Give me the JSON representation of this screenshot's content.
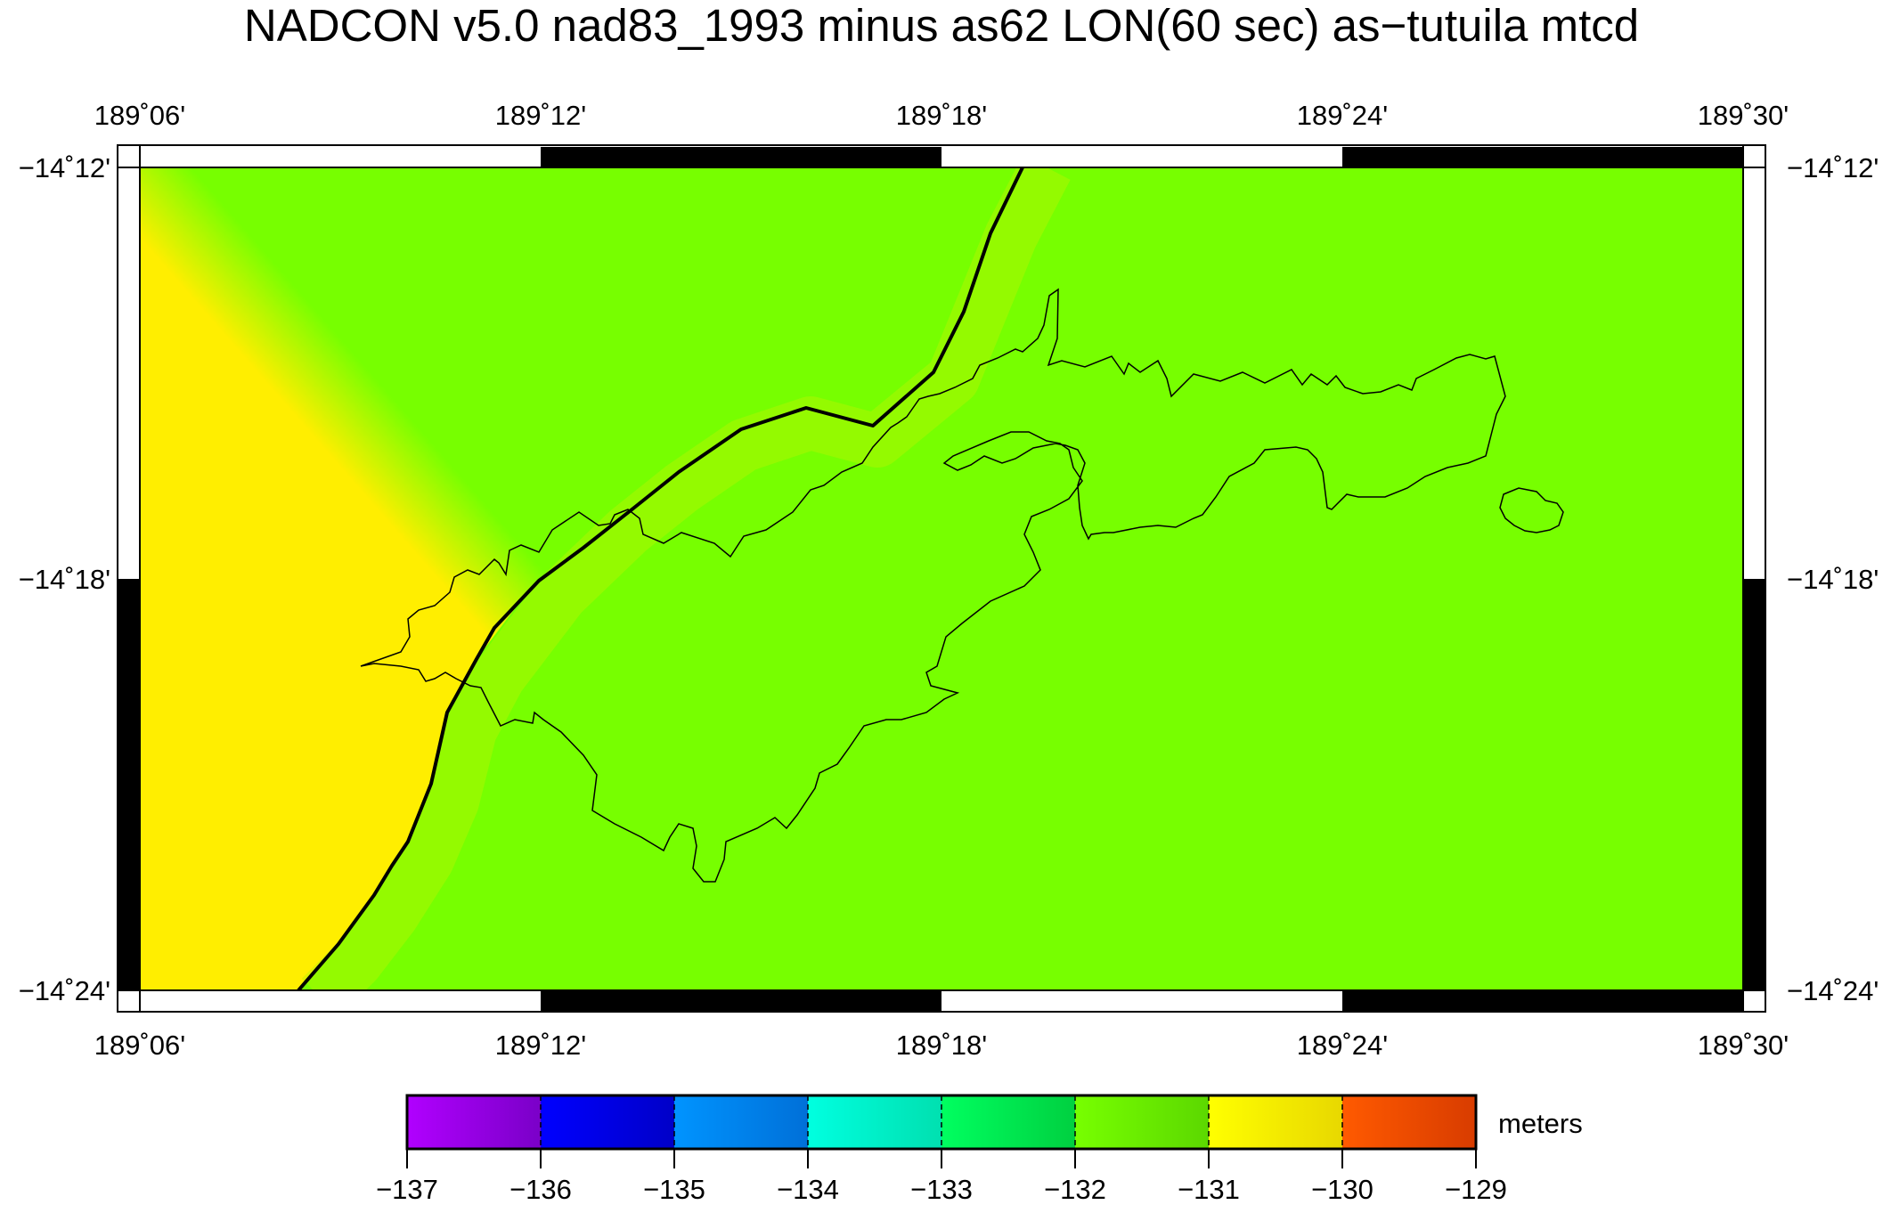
{
  "title": "NADCON v5.0 nad83_1993 minus as62 LON(60 sec) as−tutuila mtcd",
  "axes": {
    "top_ticks": [
      "189˚06'",
      "189˚12'",
      "189˚18'",
      "189˚24'",
      "189˚30'"
    ],
    "bottom_ticks": [
      "189˚06'",
      "189˚12'",
      "189˚18'",
      "189˚24'",
      "189˚30'"
    ],
    "left_ticks": [
      "−14˚12'",
      "−14˚18'",
      "−14˚24'"
    ],
    "right_ticks": [
      "−14˚12'",
      "−14˚18'",
      "−14˚24'"
    ]
  },
  "map": {
    "lon_range": [
      189.1,
      189.5
    ],
    "lat_range": [
      -14.4,
      -14.2
    ],
    "field_colors": {
      "west_zone": "#ffee00",
      "east_zone": "#77ff00"
    }
  },
  "colorbar": {
    "unit": "meters",
    "labels": [
      "−137",
      "−136",
      "−135",
      "−134",
      "−133",
      "−132",
      "−131",
      "−130",
      "−129"
    ],
    "segments": [
      {
        "from": -137,
        "to": -136,
        "c1": "#b100ff",
        "c2": "#7a00c8"
      },
      {
        "from": -136,
        "to": -135,
        "c1": "#0000ff",
        "c2": "#0000c8"
      },
      {
        "from": -135,
        "to": -134,
        "c1": "#0094ff",
        "c2": "#0070d8"
      },
      {
        "from": -134,
        "to": -133,
        "c1": "#00ffe0",
        "c2": "#00e0b0"
      },
      {
        "from": -133,
        "to": -132,
        "c1": "#00ff60",
        "c2": "#00d040"
      },
      {
        "from": -132,
        "to": -131,
        "c1": "#77ff00",
        "c2": "#5cd800"
      },
      {
        "from": -131,
        "to": -130,
        "c1": "#ffff00",
        "c2": "#e8d800"
      },
      {
        "from": -130,
        "to": -129,
        "c1": "#ff5a00",
        "c2": "#d83c00"
      }
    ]
  }
}
